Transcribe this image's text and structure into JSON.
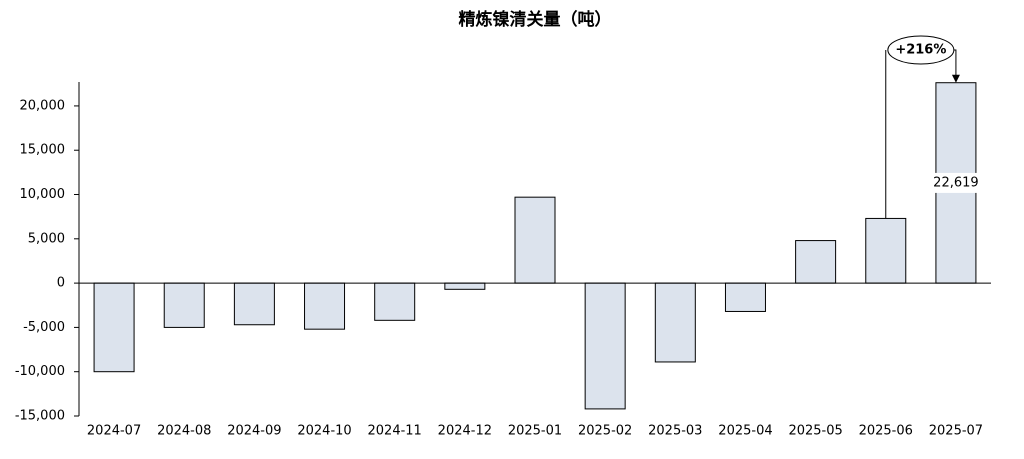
{
  "chart_data": {
    "type": "bar",
    "title": "精炼镍清关量（吨）",
    "categories": [
      "2024-07",
      "2024-08",
      "2024-09",
      "2024-10",
      "2024-11",
      "2024-12",
      "2025-01",
      "2025-02",
      "2025-03",
      "2025-04",
      "2025-05",
      "2025-06",
      "2025-07"
    ],
    "values": [
      -10000,
      -5000,
      -4700,
      -5200,
      -4200,
      -700,
      9700,
      -14200,
      -8900,
      -3200,
      4800,
      7300,
      22619
    ],
    "value_labels": [
      null,
      null,
      null,
      null,
      null,
      null,
      null,
      null,
      null,
      null,
      null,
      null,
      "22,619"
    ],
    "color": "#dce3ed",
    "ylim": [
      -15000,
      22700
    ],
    "yticks": [
      {
        "value": -15000,
        "label": "-15,000"
      },
      {
        "value": -10000,
        "label": "-10,000"
      },
      {
        "value": -5000,
        "label": "-5,000"
      },
      0,
      {
        "value": 5000,
        "label": "5,000"
      },
      {
        "value": 10000,
        "label": "10,000"
      },
      {
        "value": 15000,
        "label": "15,000"
      },
      {
        "value": 20000,
        "label": "20,000"
      }
    ],
    "annotation": "+216%"
  }
}
